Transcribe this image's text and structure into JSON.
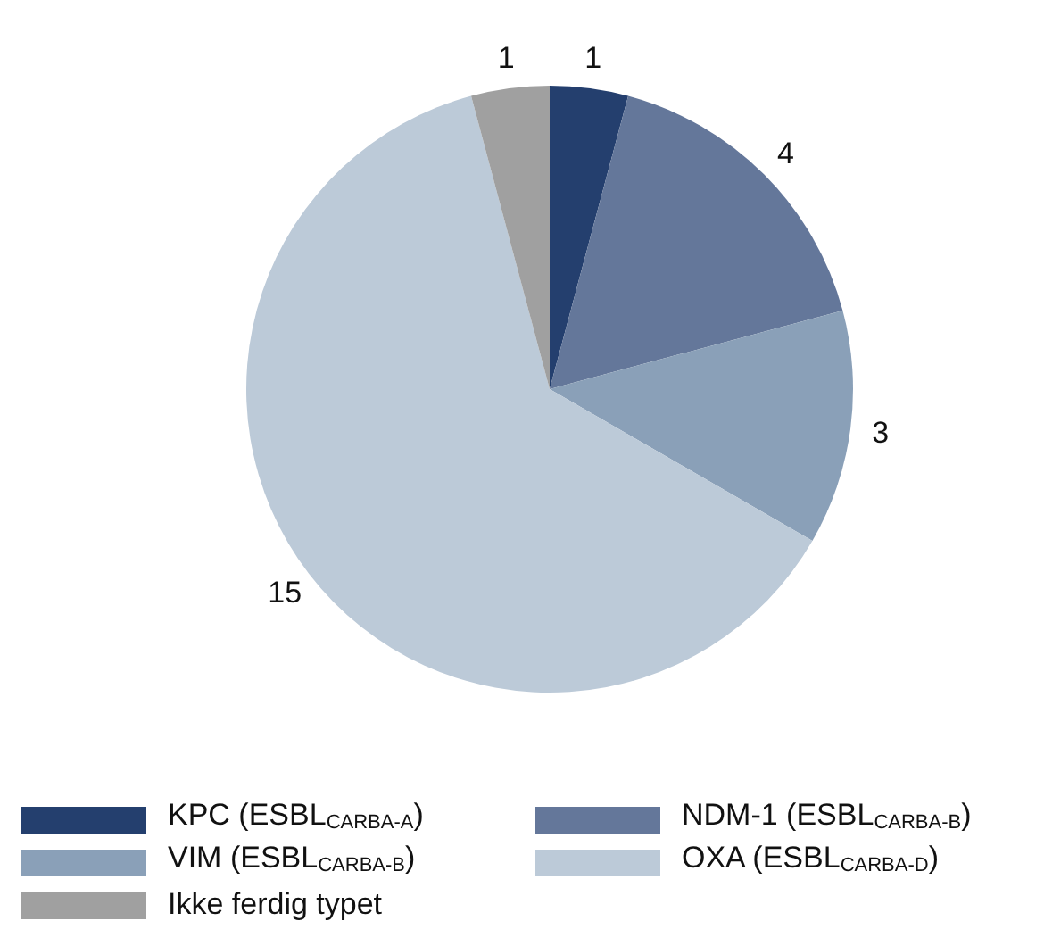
{
  "chart_data": {
    "type": "pie",
    "categories": [
      "KPC (ESBL$_{CARBA-A}$)",
      "NDM-1 (ESBL$_{CARBA-B}$)",
      "VIM (ESBL$_{CARBA-B}$)",
      "OXA (ESBL$_{CARBA-D}$)",
      "Ikke ferdig typet"
    ],
    "values": [
      1,
      4,
      3,
      15,
      1
    ],
    "colors": [
      "#243f6e",
      "#64779a",
      "#8aa0b8",
      "#bccad8",
      "#a0a0a0"
    ],
    "data_labels": true,
    "legend": "bottom"
  }
}
